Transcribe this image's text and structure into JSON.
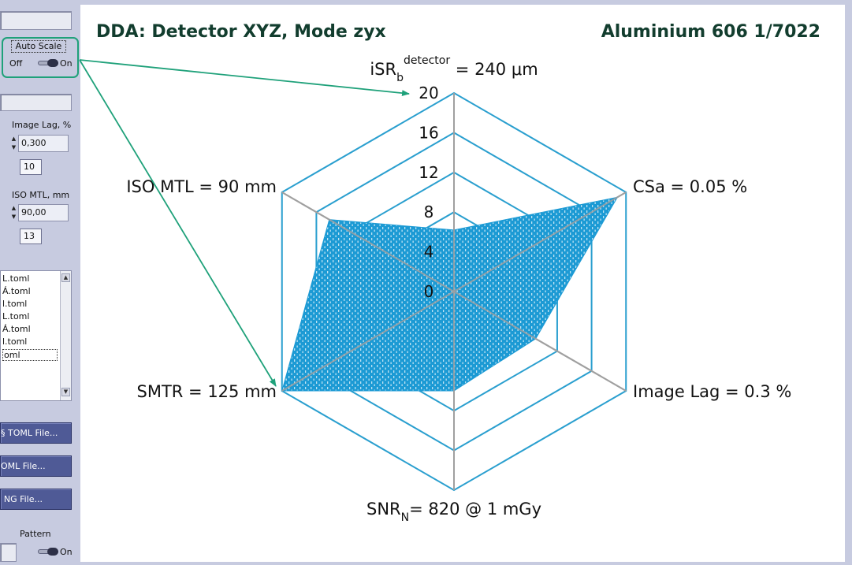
{
  "panel": {
    "autoscale": {
      "label": "Auto Scale",
      "off": "Off",
      "on": "On"
    },
    "image_lag": {
      "label": "Image Lag, %",
      "value": "0,300",
      "index": "10"
    },
    "iso_mtl": {
      "label": "ISO MTL, mm",
      "value": "90,00",
      "index": "13"
    },
    "files": [
      "L.toml",
      "Á.toml",
      "l.toml",
      "L.toml",
      "Á.toml",
      "l.toml",
      "oml"
    ],
    "buttons": {
      "load_toml": "§ TOML File...",
      "save_toml": "OML File...",
      "save_png": "NG File..."
    },
    "pattern": {
      "label": "Pattern",
      "on": "On"
    }
  },
  "chart_data": {
    "type": "radar",
    "title": "DDA: Detector XYZ, Mode zyx",
    "material": "Aluminium 606 1/7022",
    "axes": [
      {
        "pre": "iSR",
        "sub": "b",
        "sup": "detector",
        "post": " = 240 μm"
      },
      {
        "pre": "CSa = 0.05 %",
        "sub": "",
        "sup": "",
        "post": ""
      },
      {
        "pre": "Image Lag = 0.3 %",
        "sub": "",
        "sup": "",
        "post": ""
      },
      {
        "pre": "SNR",
        "sub": "N",
        "sup": "",
        "post": "= 820 @ 1 mGy"
      },
      {
        "pre": "SMTR = 125 mm",
        "sub": "",
        "sup": "",
        "post": ""
      },
      {
        "pre": "ISO MTL = 90 mm",
        "sub": "",
        "sup": "",
        "post": ""
      }
    ],
    "ticks": [
      "0",
      "4",
      "8",
      "12",
      "16",
      "20"
    ],
    "rmax": 20,
    "values": [
      6.2,
      19,
      9.5,
      10,
      20,
      14.5
    ],
    "grid_color": "#2a9fcf",
    "spoke_color": "#a0a0a0",
    "fill_color": "#1c9ad4",
    "arrow_color": "#1fa17a"
  }
}
